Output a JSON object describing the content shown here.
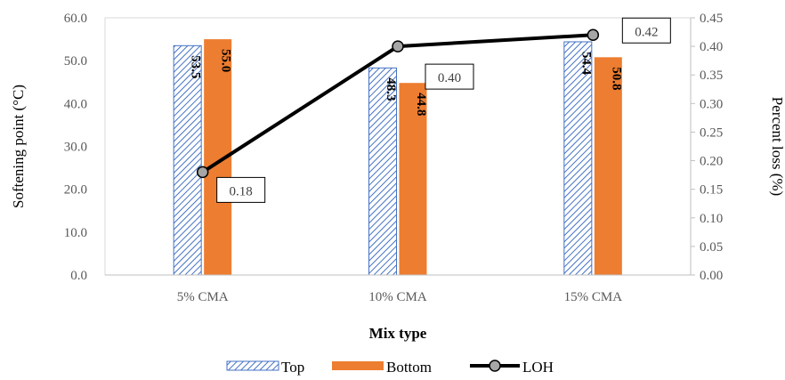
{
  "chart_data": {
    "type": "bar",
    "categories": [
      "5% CMA",
      "10% CMA",
      "15% CMA"
    ],
    "series": [
      {
        "name": "Top",
        "type": "bar",
        "axis": "left",
        "values": [
          53.5,
          48.3,
          54.4
        ],
        "color": "#4472C4",
        "pattern": "diagonal-hatch"
      },
      {
        "name": "Bottom",
        "type": "bar",
        "axis": "left",
        "values": [
          55.0,
          44.8,
          50.8
        ],
        "color": "#ED7D31"
      },
      {
        "name": "LOH",
        "type": "line",
        "axis": "right",
        "values": [
          0.18,
          0.4,
          0.42
        ],
        "color": "#000000",
        "marker_color": "#A6A6A6"
      }
    ],
    "bar_labels": {
      "Top": [
        "53.5",
        "48.3",
        "54.4"
      ],
      "Bottom": [
        "55.0",
        "44.8",
        "50.8"
      ]
    },
    "line_labels": [
      "0.18",
      "0.40",
      "0.42"
    ],
    "xlabel": "Mix type",
    "ylabel": "Softening point (°C)",
    "y2label": "Percent loss (%)",
    "ylim": [
      0,
      60
    ],
    "y2lim": [
      0,
      0.45
    ],
    "yticks": [
      "0.0",
      "10.0",
      "20.0",
      "30.0",
      "40.0",
      "50.0",
      "60.0"
    ],
    "y2ticks": [
      "0.00",
      "0.05",
      "0.10",
      "0.15",
      "0.20",
      "0.25",
      "0.30",
      "0.35",
      "0.40",
      "0.45"
    ],
    "grid": false,
    "legend_position": "bottom",
    "legend": [
      "Top",
      "Bottom",
      "LOH"
    ]
  }
}
